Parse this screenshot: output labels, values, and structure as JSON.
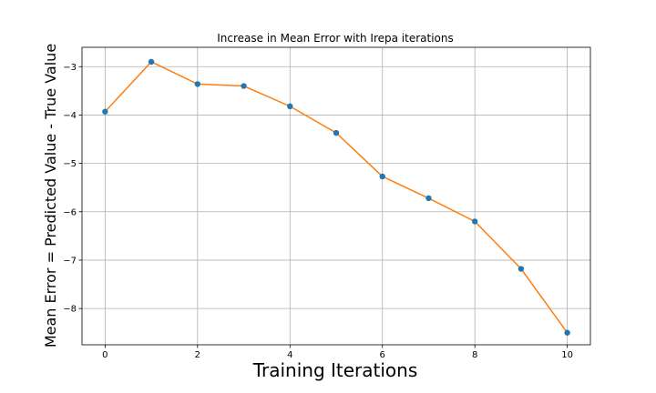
{
  "chart_data": {
    "type": "line",
    "title": "Increase in Mean Error with Irepa iterations",
    "xlabel": "Training Iterations",
    "ylabel": "Mean Error = Predicted Value - True Value",
    "x": [
      0,
      1,
      2,
      3,
      4,
      5,
      6,
      7,
      8,
      9,
      10
    ],
    "series": [
      {
        "values": [
          -3.93,
          -2.9,
          -3.36,
          -3.4,
          -3.82,
          -4.37,
          -5.27,
          -5.72,
          -6.2,
          -7.18,
          -8.5
        ]
      }
    ],
    "xlim": [
      -0.5,
      10.5
    ],
    "ylim": [
      -8.75,
      -2.6
    ],
    "xticks": [
      0,
      2,
      4,
      6,
      8,
      10
    ],
    "yticks": [
      -3,
      -4,
      -5,
      -6,
      -7,
      -8
    ],
    "grid": true,
    "colors": {
      "line": "#ff7f0e",
      "marker": "#1f77b4",
      "grid": "#b0b0b0"
    }
  }
}
